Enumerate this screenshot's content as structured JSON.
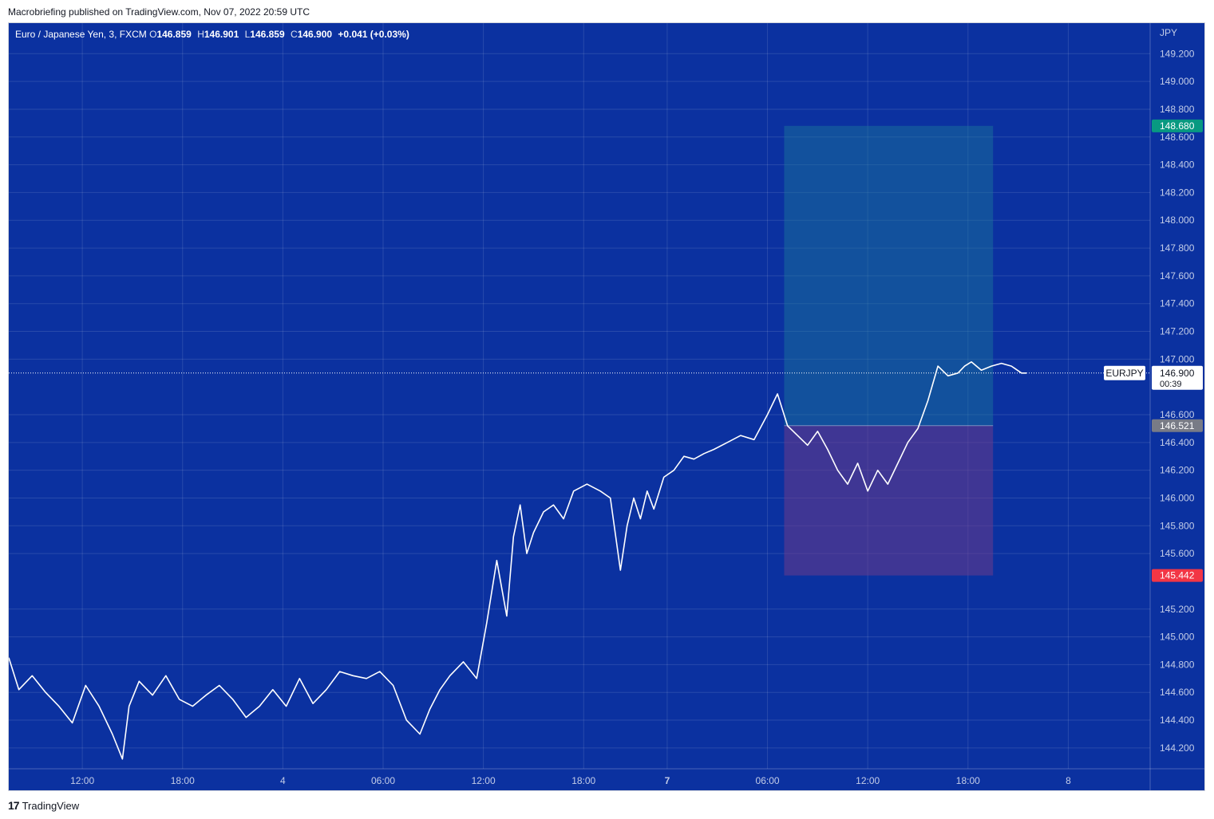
{
  "header": {
    "attribution": "Macrobriefing published on TradingView.com, Nov 07, 2022 20:59 UTC"
  },
  "legend": {
    "symbol_desc": "Euro / Japanese Yen, 3, FXCM",
    "o_label": "O",
    "o_value": "146.859",
    "h_label": "H",
    "h_value": "146.901",
    "l_label": "L",
    "l_value": "146.859",
    "c_label": "C",
    "c_value": "146.900",
    "change": "+0.041 (+0.03%)"
  },
  "footer": {
    "brand": "TradingView"
  },
  "colors": {
    "background": "#0b31a0",
    "price_line": "#ffffff",
    "target_zone": "#1a7a9a",
    "stop_zone": "#6b3a8a",
    "target_badge": "#089981",
    "stop_badge": "#f23645",
    "entry_badge": "#787b86"
  },
  "chart_data": {
    "type": "line",
    "ylabel": "JPY",
    "ylim": [
      144.05,
      149.42
    ],
    "yticks": [
      "149.200",
      "149.000",
      "148.800",
      "148.600",
      "148.400",
      "148.200",
      "148.000",
      "147.800",
      "147.600",
      "147.400",
      "147.200",
      "147.000",
      "146.600",
      "146.400",
      "146.200",
      "146.000",
      "145.800",
      "145.600",
      "145.200",
      "145.000",
      "144.800",
      "144.600",
      "144.400",
      "144.200"
    ],
    "xticks": [
      {
        "label": "12:00",
        "t": 8,
        "bold": false
      },
      {
        "label": "18:00",
        "t": 14,
        "bold": false
      },
      {
        "label": "4",
        "t": 20,
        "bold": false
      },
      {
        "label": "06:00",
        "t": 26,
        "bold": false
      },
      {
        "label": "12:00",
        "t": 32,
        "bold": false
      },
      {
        "label": "18:00",
        "t": 38,
        "bold": false
      },
      {
        "label": "7",
        "t": 43,
        "bold": true
      },
      {
        "label": "06:00",
        "t": 49,
        "bold": false
      },
      {
        "label": "12:00",
        "t": 55,
        "bold": false
      },
      {
        "label": "18:00",
        "t": 61,
        "bold": false
      },
      {
        "label": "8",
        "t": 67,
        "bold": false
      }
    ],
    "xlim": [
      3.6,
      71.9
    ],
    "series": [
      {
        "x": [
          3.6,
          4.2,
          5.0,
          5.8,
          6.6,
          7.4,
          8.2,
          9.0,
          9.8,
          10.4,
          10.8,
          11.4,
          12.2,
          13.0,
          13.8,
          14.6,
          15.4,
          16.2,
          17.0,
          17.8,
          18.6,
          19.4,
          20.2,
          21.0,
          21.8,
          22.6,
          23.4,
          24.2,
          25.0,
          25.8,
          26.6,
          27.4,
          28.2,
          28.8,
          29.4,
          30.0,
          30.8,
          31.6,
          32.2,
          32.8,
          33.4,
          33.8,
          34.2,
          34.6,
          35.0,
          35.6,
          36.2,
          36.8,
          37.4,
          38.2,
          39.0,
          39.6,
          40.2,
          40.6,
          41.0,
          41.4,
          41.8,
          42.2,
          42.8,
          43.4,
          44.0,
          44.6,
          45.2,
          45.8,
          46.6,
          47.4,
          48.2,
          49.0,
          49.6,
          50.2,
          50.8,
          51.4,
          52.0,
          52.6,
          53.2,
          53.8,
          54.4,
          55.0,
          55.6,
          56.2,
          56.8,
          57.4,
          58.0,
          58.6,
          59.2,
          59.8,
          60.4,
          60.8,
          61.2,
          61.8,
          62.4,
          63.0,
          63.6,
          64.2,
          64.5
        ],
        "y": [
          144.85,
          144.62,
          144.72,
          144.6,
          144.5,
          144.38,
          144.65,
          144.5,
          144.3,
          144.12,
          144.5,
          144.68,
          144.58,
          144.72,
          144.55,
          144.5,
          144.58,
          144.65,
          144.55,
          144.42,
          144.5,
          144.62,
          144.5,
          144.7,
          144.52,
          144.62,
          144.75,
          144.72,
          144.7,
          144.75,
          144.65,
          144.4,
          144.3,
          144.48,
          144.62,
          144.72,
          144.82,
          144.7,
          145.1,
          145.55,
          145.15,
          145.72,
          145.95,
          145.6,
          145.75,
          145.9,
          145.95,
          145.85,
          146.05,
          146.1,
          146.05,
          146.0,
          145.48,
          145.8,
          146.0,
          145.85,
          146.05,
          145.92,
          146.15,
          146.2,
          146.3,
          146.28,
          146.32,
          146.35,
          146.4,
          146.45,
          146.42,
          146.6,
          146.75,
          146.52,
          146.45,
          146.38,
          146.48,
          146.35,
          146.2,
          146.1,
          146.25,
          146.05,
          146.2,
          146.1,
          146.25,
          146.4,
          146.5,
          146.7,
          146.95,
          146.88,
          146.9,
          146.95,
          146.98,
          146.92,
          146.95,
          146.97,
          146.95,
          146.9,
          146.9
        ]
      }
    ],
    "position_tool": {
      "t_start": 50.0,
      "t_end": 62.5,
      "target": "148.680",
      "target_y": 148.68,
      "entry": "146.521",
      "entry_y": 146.521,
      "stop": "145.442",
      "stop_y": 145.442
    },
    "last_price": {
      "symbol": "EURJPY",
      "value": "146.900",
      "y": 146.9,
      "countdown": "00:39"
    }
  }
}
